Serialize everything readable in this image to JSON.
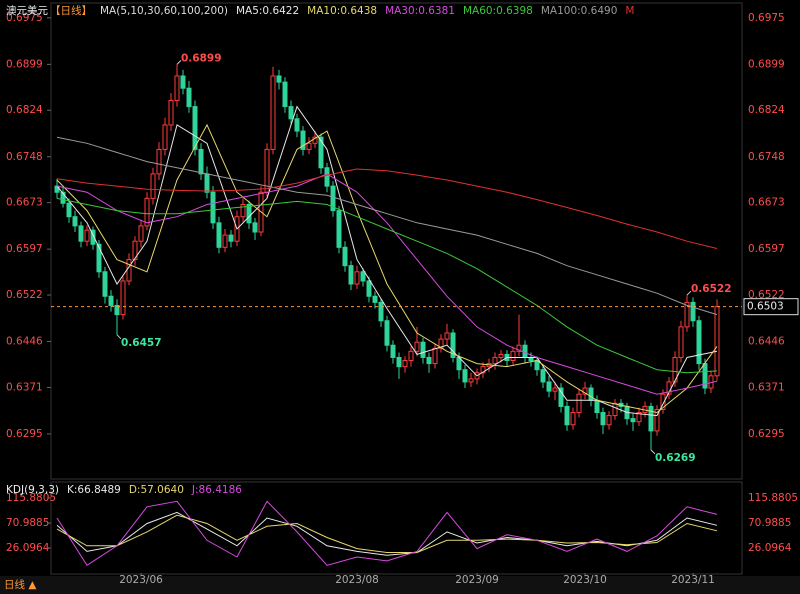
{
  "chart_data": [
    {
      "type": "candlestick",
      "title": "澳元美元",
      "period": "【日线】",
      "ma_label": "MA(5,10,30,60,100,200)",
      "xlim": [
        -1,
        112
      ],
      "ylim": [
        0.6223,
        0.6996
      ],
      "yticks": [
        0.6975,
        0.6899,
        0.6824,
        0.6748,
        0.6673,
        0.6597,
        0.6522,
        0.6446,
        0.6371,
        0.6295
      ],
      "up_color": "#ff3b3b",
      "down_color": "#2fd49a",
      "candles": [
        [
          0.67,
          0.6712,
          0.668,
          0.669
        ],
        [
          0.669,
          0.6698,
          0.6665,
          0.6672
        ],
        [
          0.6672,
          0.668,
          0.664,
          0.665
        ],
        [
          0.665,
          0.666,
          0.6625,
          0.6635
        ],
        [
          0.6635,
          0.6642,
          0.66,
          0.661
        ],
        [
          0.661,
          0.6636,
          0.6602,
          0.6628
        ],
        [
          0.6628,
          0.6634,
          0.6596,
          0.6605
        ],
        [
          0.6605,
          0.6612,
          0.655,
          0.656
        ],
        [
          0.656,
          0.6568,
          0.6508,
          0.652
        ],
        [
          0.652,
          0.653,
          0.6495,
          0.6505
        ],
        [
          0.6505,
          0.6515,
          0.6457,
          0.649
        ],
        [
          0.649,
          0.6552,
          0.6482,
          0.6545
        ],
        [
          0.6545,
          0.659,
          0.6538,
          0.658
        ],
        [
          0.658,
          0.6618,
          0.657,
          0.661
        ],
        [
          0.661,
          0.6645,
          0.66,
          0.6635
        ],
        [
          0.6635,
          0.669,
          0.6628,
          0.668
        ],
        [
          0.668,
          0.673,
          0.667,
          0.672
        ],
        [
          0.672,
          0.6772,
          0.671,
          0.676
        ],
        [
          0.676,
          0.6812,
          0.675,
          0.68
        ],
        [
          0.68,
          0.6852,
          0.679,
          0.684
        ],
        [
          0.684,
          0.6899,
          0.683,
          0.688
        ],
        [
          0.688,
          0.689,
          0.685,
          0.686
        ],
        [
          0.686,
          0.6872,
          0.682,
          0.683
        ],
        [
          0.683,
          0.684,
          0.675,
          0.676
        ],
        [
          0.676,
          0.677,
          0.671,
          0.672
        ],
        [
          0.672,
          0.6732,
          0.668,
          0.669
        ],
        [
          0.669,
          0.67,
          0.663,
          0.664
        ],
        [
          0.664,
          0.665,
          0.659,
          0.66
        ],
        [
          0.66,
          0.663,
          0.6592,
          0.662
        ],
        [
          0.662,
          0.6628,
          0.66,
          0.661
        ],
        [
          0.661,
          0.666,
          0.6602,
          0.665
        ],
        [
          0.665,
          0.668,
          0.6642,
          0.667
        ],
        [
          0.667,
          0.6676,
          0.663,
          0.664
        ],
        [
          0.664,
          0.6648,
          0.6612,
          0.6625
        ],
        [
          0.6625,
          0.67,
          0.6618,
          0.669
        ],
        [
          0.669,
          0.677,
          0.6682,
          0.676
        ],
        [
          0.676,
          0.6895,
          0.6752,
          0.688
        ],
        [
          0.688,
          0.689,
          0.6858,
          0.687
        ],
        [
          0.687,
          0.6878,
          0.682,
          0.683
        ],
        [
          0.683,
          0.684,
          0.68,
          0.681
        ],
        [
          0.681,
          0.6818,
          0.678,
          0.679
        ],
        [
          0.679,
          0.6798,
          0.675,
          0.676
        ],
        [
          0.676,
          0.678,
          0.6752,
          0.677
        ],
        [
          0.677,
          0.679,
          0.6762,
          0.678
        ],
        [
          0.678,
          0.6786,
          0.672,
          0.673
        ],
        [
          0.673,
          0.6738,
          0.669,
          0.67
        ],
        [
          0.67,
          0.6708,
          0.665,
          0.666
        ],
        [
          0.666,
          0.6668,
          0.659,
          0.66
        ],
        [
          0.66,
          0.661,
          0.656,
          0.657
        ],
        [
          0.657,
          0.6578,
          0.653,
          0.654
        ],
        [
          0.654,
          0.657,
          0.6532,
          0.656
        ],
        [
          0.656,
          0.6566,
          0.6536,
          0.6545
        ],
        [
          0.6545,
          0.6552,
          0.651,
          0.652
        ],
        [
          0.652,
          0.6528,
          0.65,
          0.651
        ],
        [
          0.651,
          0.6516,
          0.647,
          0.648
        ],
        [
          0.648,
          0.6488,
          0.643,
          0.644
        ],
        [
          0.644,
          0.6448,
          0.641,
          0.642
        ],
        [
          0.642,
          0.6428,
          0.6385,
          0.6405
        ],
        [
          0.6405,
          0.6422,
          0.6395,
          0.6415
        ],
        [
          0.6415,
          0.6438,
          0.6405,
          0.643
        ],
        [
          0.643,
          0.647,
          0.6422,
          0.6445
        ],
        [
          0.6445,
          0.6452,
          0.641,
          0.642
        ],
        [
          0.642,
          0.6428,
          0.6395,
          0.641
        ],
        [
          0.641,
          0.6442,
          0.6402,
          0.6435
        ],
        [
          0.6435,
          0.6458,
          0.6428,
          0.645
        ],
        [
          0.645,
          0.6475,
          0.644,
          0.646
        ],
        [
          0.646,
          0.6466,
          0.6412,
          0.642
        ],
        [
          0.642,
          0.6428,
          0.6385,
          0.64
        ],
        [
          0.64,
          0.6408,
          0.637,
          0.638
        ],
        [
          0.638,
          0.6395,
          0.6372,
          0.6385
        ],
        [
          0.6385,
          0.6402,
          0.6376,
          0.6395
        ],
        [
          0.6395,
          0.6412,
          0.6386,
          0.6405
        ],
        [
          0.6405,
          0.6418,
          0.6396,
          0.641
        ],
        [
          0.641,
          0.6428,
          0.64,
          0.642
        ],
        [
          0.642,
          0.6432,
          0.6412,
          0.6425
        ],
        [
          0.6425,
          0.6432,
          0.6405,
          0.6415
        ],
        [
          0.6415,
          0.6438,
          0.6408,
          0.643
        ],
        [
          0.643,
          0.649,
          0.6422,
          0.644
        ],
        [
          0.644,
          0.6448,
          0.641,
          0.642
        ],
        [
          0.642,
          0.6428,
          0.6405,
          0.6415
        ],
        [
          0.6415,
          0.6422,
          0.639,
          0.64
        ],
        [
          0.64,
          0.6408,
          0.637,
          0.638
        ],
        [
          0.638,
          0.639,
          0.6355,
          0.6365
        ],
        [
          0.6365,
          0.638,
          0.635,
          0.637
        ],
        [
          0.637,
          0.6378,
          0.633,
          0.634
        ],
        [
          0.634,
          0.6348,
          0.63,
          0.631
        ],
        [
          0.631,
          0.6338,
          0.6302,
          0.633
        ],
        [
          0.633,
          0.6368,
          0.6322,
          0.636
        ],
        [
          0.636,
          0.638,
          0.6352,
          0.637
        ],
        [
          0.637,
          0.6376,
          0.634,
          0.635
        ],
        [
          0.635,
          0.6358,
          0.632,
          0.633
        ],
        [
          0.633,
          0.6338,
          0.6295,
          0.631
        ],
        [
          0.631,
          0.6332,
          0.6302,
          0.6325
        ],
        [
          0.6325,
          0.6352,
          0.6318,
          0.6345
        ],
        [
          0.6345,
          0.6352,
          0.633,
          0.634
        ],
        [
          0.634,
          0.6346,
          0.631,
          0.632
        ],
        [
          0.632,
          0.6328,
          0.63,
          0.6315
        ],
        [
          0.6315,
          0.6338,
          0.6308,
          0.633
        ],
        [
          0.633,
          0.6348,
          0.6322,
          0.634
        ],
        [
          0.634,
          0.6346,
          0.6269,
          0.63
        ],
        [
          0.63,
          0.6342,
          0.6292,
          0.6335
        ],
        [
          0.6335,
          0.6368,
          0.6328,
          0.636
        ],
        [
          0.636,
          0.6388,
          0.6352,
          0.638
        ],
        [
          0.638,
          0.643,
          0.6372,
          0.642
        ],
        [
          0.642,
          0.648,
          0.6412,
          0.647
        ],
        [
          0.647,
          0.6522,
          0.6462,
          0.651
        ],
        [
          0.651,
          0.6518,
          0.647,
          0.648
        ],
        [
          0.648,
          0.6488,
          0.64,
          0.641
        ],
        [
          0.641,
          0.6418,
          0.636,
          0.637
        ],
        [
          0.637,
          0.6398,
          0.6362,
          0.639
        ],
        [
          0.639,
          0.6515,
          0.6382,
          0.6503
        ]
      ],
      "x": [
        0,
        5,
        10,
        15,
        20,
        25,
        30,
        35,
        40,
        45,
        50,
        55,
        60,
        65,
        70,
        75,
        80,
        85,
        90,
        95,
        100,
        105,
        110
      ],
      "series": [
        {
          "name": "MA5:0.6422",
          "color": "#e8e8e8",
          "values": [
            0.67,
            0.664,
            0.654,
            0.661,
            0.68,
            0.677,
            0.663,
            0.668,
            0.683,
            0.676,
            0.658,
            0.65,
            0.6425,
            0.644,
            0.639,
            0.642,
            0.642,
            0.635,
            0.635,
            0.633,
            0.6325,
            0.642,
            0.643
          ]
        },
        {
          "name": "MA10:0.6438",
          "color": "#e6d86a",
          "values": [
            0.671,
            0.666,
            0.658,
            0.656,
            0.671,
            0.68,
            0.669,
            0.665,
            0.676,
            0.679,
            0.666,
            0.654,
            0.646,
            0.643,
            0.641,
            0.6405,
            0.6415,
            0.638,
            0.635,
            0.634,
            0.633,
            0.637,
            0.6438
          ]
        },
        {
          "name": "MA30:0.6381",
          "color": "#d84ae0",
          "values": [
            0.67,
            0.669,
            0.666,
            0.664,
            0.665,
            0.667,
            0.668,
            0.669,
            0.67,
            0.672,
            0.669,
            0.664,
            0.658,
            0.652,
            0.647,
            0.644,
            0.642,
            0.6405,
            0.639,
            0.6375,
            0.636,
            0.637,
            0.6381
          ]
        },
        {
          "name": "MA60:0.6398",
          "color": "#3cc83c",
          "values": [
            0.668,
            0.667,
            0.666,
            0.6655,
            0.6655,
            0.666,
            0.6665,
            0.667,
            0.6675,
            0.667,
            0.665,
            0.663,
            0.661,
            0.659,
            0.6565,
            0.6535,
            0.6505,
            0.647,
            0.644,
            0.642,
            0.64,
            0.6395,
            0.6398
          ]
        },
        {
          "name": "MA100:0.6490",
          "color": "#9a9a9a",
          "values": [
            0.678,
            0.677,
            0.6755,
            0.674,
            0.673,
            0.672,
            0.671,
            0.67,
            0.669,
            0.6685,
            0.667,
            0.6655,
            0.664,
            0.663,
            0.662,
            0.6605,
            0.659,
            0.657,
            0.6555,
            0.654,
            0.6525,
            0.6505,
            0.649
          ]
        },
        {
          "name": "M",
          "color": "#e03030",
          "values": [
            0.6712,
            0.6705,
            0.67,
            0.6695,
            0.6693,
            0.6692,
            0.6693,
            0.6696,
            0.6705,
            0.6718,
            0.6728,
            0.6725,
            0.6718,
            0.671,
            0.67,
            0.669,
            0.6678,
            0.6665,
            0.6652,
            0.6638,
            0.6625,
            0.661,
            0.6598
          ]
        }
      ],
      "annotations": [
        {
          "x": 20,
          "value": 0.6899,
          "color": "#ff4d4d"
        },
        {
          "x": 10,
          "value": 0.6457,
          "color": "#3ee6a0"
        },
        {
          "x": 99,
          "value": 0.6269,
          "color": "#3ee6a0"
        },
        {
          "x": 105,
          "value": 0.6522,
          "color": "#ff4d4d"
        }
      ],
      "last_price": {
        "value": 0.6503,
        "color": "#ff9933"
      }
    },
    {
      "type": "line",
      "title": "KDJ(9,3,3)",
      "xlim": [
        -1,
        112
      ],
      "ylim": [
        -15.2,
        141.0
      ],
      "yticks": [
        115.8805,
        70.9885,
        26.0964
      ],
      "xticks": [
        {
          "value": 14,
          "label": "2023/06"
        },
        {
          "value": 50,
          "label": "2023/08"
        },
        {
          "value": 70,
          "label": "2023/09"
        },
        {
          "value": 88,
          "label": "2023/10"
        },
        {
          "value": 106,
          "label": "2023/11"
        }
      ],
      "x": [
        0,
        5,
        10,
        15,
        20,
        25,
        30,
        35,
        40,
        45,
        50,
        55,
        60,
        65,
        70,
        75,
        80,
        85,
        90,
        95,
        100,
        105,
        110
      ],
      "series": [
        {
          "name": "K:66.8489",
          "color": "#e8e8e8",
          "values": [
            67,
            20,
            30,
            70,
            90,
            60,
            30,
            80,
            65,
            30,
            20,
            13,
            18,
            55,
            35,
            45,
            40,
            30,
            38,
            30,
            40,
            80,
            66.8489
          ]
        },
        {
          "name": "D:57.0640",
          "color": "#e6d86a",
          "values": [
            60,
            30,
            30,
            55,
            85,
            70,
            40,
            65,
            70,
            45,
            25,
            18,
            18,
            40,
            40,
            42,
            40,
            35,
            36,
            32,
            36,
            70,
            57.064
          ]
        },
        {
          "name": "J:86.4186",
          "color": "#d84ae0",
          "values": [
            80,
            -5,
            30,
            100,
            110,
            40,
            10,
            110,
            55,
            -5,
            10,
            3,
            20,
            90,
            25,
            50,
            40,
            20,
            42,
            20,
            48,
            100,
            86.4186
          ]
        }
      ]
    }
  ],
  "footer_tab": "日线 ▲"
}
